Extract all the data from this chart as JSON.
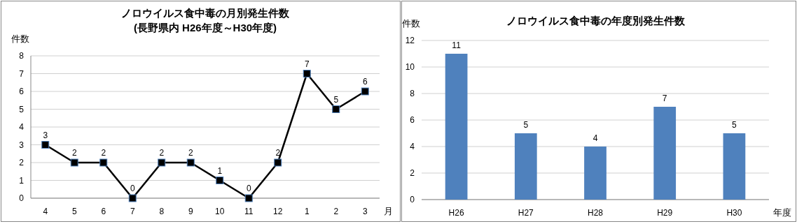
{
  "chart_data": [
    {
      "type": "line",
      "title": "ノロウイルス食中毒の月別発生件数\n(長野県内  H26年度～H30年度)",
      "ylabel": "件数",
      "xlabel": "月",
      "categories": [
        "4",
        "5",
        "6",
        "7",
        "8",
        "9",
        "10",
        "11",
        "12",
        "1",
        "2",
        "3"
      ],
      "series": [
        {
          "color": "#000000",
          "values": [
            3,
            2,
            2,
            0,
            2,
            2,
            1,
            0,
            2,
            7,
            5,
            6
          ]
        }
      ],
      "marker": "square",
      "line_style": "solid",
      "ylim": [
        0,
        8
      ],
      "yticks": [
        0,
        1,
        2,
        3,
        4,
        5,
        6,
        7,
        8
      ],
      "grid": "y",
      "data_labels": true
    },
    {
      "type": "bar",
      "title": "ノロウイルス食中毒の年度別発生件数",
      "ylabel": "件数",
      "xlabel": "年度",
      "categories": [
        "H26",
        "H27",
        "H28",
        "H29",
        "H30"
      ],
      "series": [
        {
          "color": "#4f81bd",
          "values": [
            11,
            5,
            4,
            7,
            5
          ]
        }
      ],
      "ylim": [
        0,
        12
      ],
      "yticks": [
        0,
        2,
        4,
        6,
        8,
        10,
        12
      ],
      "grid": "y",
      "data_labels": true
    }
  ]
}
